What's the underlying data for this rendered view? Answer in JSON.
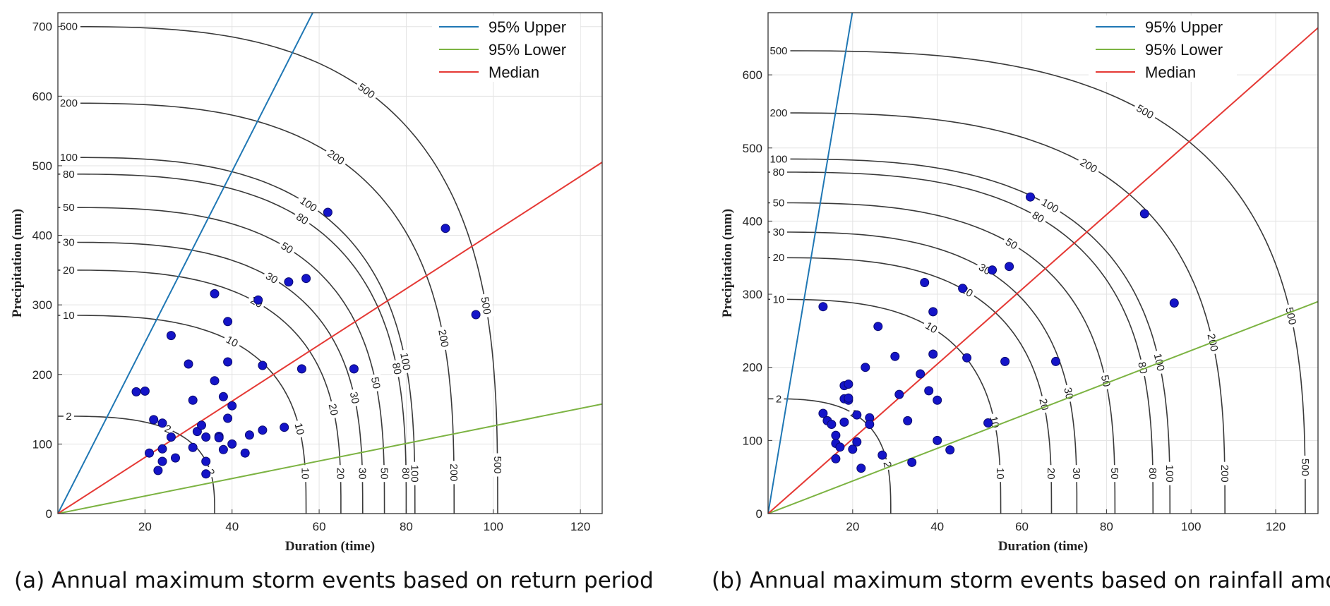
{
  "chart_data": [
    {
      "type": "scatter",
      "caption": "(a) Annual maximum storm events based on return period",
      "xlabel": "Duration (time)",
      "ylabel": "Precipitation (mm)",
      "xlim": [
        0,
        125
      ],
      "ylim": [
        0,
        720
      ],
      "xticks": [
        20,
        40,
        60,
        80,
        100,
        120
      ],
      "yticks": [
        0,
        100,
        200,
        300,
        400,
        500,
        600,
        700
      ],
      "grid": true,
      "legend_position": "top-right",
      "lines": [
        {
          "name": "95% Upper",
          "color": "#1f77b4",
          "slope": 12.3
        },
        {
          "name": "95% Lower",
          "color": "#7cb342",
          "slope": 1.26
        },
        {
          "name": "Median",
          "color": "#e53935",
          "slope": 4.04
        }
      ],
      "contours": [
        {
          "label": "2",
          "p_max": 140,
          "d_max": 36,
          "n": 3
        },
        {
          "label": "10",
          "p_max": 285,
          "d_max": 57,
          "n": 3
        },
        {
          "label": "20",
          "p_max": 350,
          "d_max": 65,
          "n": 3
        },
        {
          "label": "30",
          "p_max": 390,
          "d_max": 70,
          "n": 3
        },
        {
          "label": "50",
          "p_max": 440,
          "d_max": 75,
          "n": 3
        },
        {
          "label": "80",
          "p_max": 488,
          "d_max": 80,
          "n": 3
        },
        {
          "label": "100",
          "p_max": 512,
          "d_max": 82,
          "n": 3
        },
        {
          "label": "200",
          "p_max": 590,
          "d_max": 91,
          "n": 3
        },
        {
          "label": "500",
          "p_max": 700,
          "d_max": 101,
          "n": 3
        }
      ],
      "points": {
        "x": [
          18,
          20,
          22,
          24,
          24,
          21,
          23,
          24,
          26,
          27,
          26,
          30,
          31,
          31,
          32,
          33,
          34,
          34,
          34,
          36,
          36,
          37,
          37,
          38,
          38,
          39,
          39,
          39,
          40,
          40,
          43,
          44,
          46,
          47,
          47,
          52,
          53,
          56,
          57,
          62,
          68,
          89,
          96
        ],
        "y": [
          175,
          176,
          135,
          93,
          130,
          87,
          62,
          75,
          110,
          80,
          256,
          215,
          163,
          95,
          118,
          127,
          110,
          75,
          57,
          191,
          316,
          111,
          109,
          92,
          168,
          137,
          218,
          276,
          155,
          100,
          87,
          113,
          307,
          120,
          213,
          124,
          333,
          208,
          338,
          433,
          208,
          410,
          286
        ]
      }
    },
    {
      "type": "scatter",
      "caption": "(b) Annual maximum storm events based on rainfall amount",
      "xlabel": "Duration (time)",
      "ylabel": "Precipitation (mm)",
      "xlim": [
        0,
        130
      ],
      "ylim": [
        0,
        685
      ],
      "xticks": [
        20,
        40,
        60,
        80,
        100,
        120
      ],
      "yticks": [
        0,
        100,
        200,
        300,
        400,
        500,
        600
      ],
      "grid": true,
      "legend_position": "top-right",
      "lines": [
        {
          "name": "95% Upper",
          "color": "#1f77b4",
          "slope": 34.4
        },
        {
          "name": "95% Lower",
          "color": "#7cb342",
          "slope": 2.23
        },
        {
          "name": "Median",
          "color": "#e53935",
          "slope": 5.11
        }
      ],
      "contours": [
        {
          "label": "2",
          "p_max": 157,
          "d_max": 29,
          "n": 3
        },
        {
          "label": "10",
          "p_max": 293,
          "d_max": 55,
          "n": 3
        },
        {
          "label": "20",
          "p_max": 350,
          "d_max": 67,
          "n": 3
        },
        {
          "label": "30",
          "p_max": 385,
          "d_max": 73,
          "n": 3
        },
        {
          "label": "50",
          "p_max": 425,
          "d_max": 82,
          "n": 3
        },
        {
          "label": "80",
          "p_max": 467,
          "d_max": 91,
          "n": 3
        },
        {
          "label": "100",
          "p_max": 485,
          "d_max": 95,
          "n": 3
        },
        {
          "label": "200",
          "p_max": 548,
          "d_max": 108,
          "n": 3
        },
        {
          "label": "500",
          "p_max": 633,
          "d_max": 127,
          "n": 3
        }
      ],
      "points": {
        "x": [
          13,
          13,
          14,
          15,
          16,
          16,
          16,
          17,
          18,
          18,
          18,
          19,
          19,
          19,
          20,
          21,
          21,
          22,
          23,
          24,
          24,
          26,
          27,
          30,
          31,
          33,
          34,
          36,
          37,
          38,
          39,
          39,
          40,
          40,
          43,
          46,
          47,
          52,
          53,
          56,
          57,
          62,
          68,
          89,
          96
        ],
        "y": [
          283,
          137,
          127,
          122,
          75,
          107,
          96,
          91,
          175,
          157,
          125,
          155,
          158,
          177,
          88,
          98,
          135,
          62,
          200,
          131,
          122,
          256,
          80,
          215,
          163,
          127,
          70,
          191,
          316,
          168,
          218,
          276,
          155,
          100,
          87,
          308,
          213,
          124,
          333,
          208,
          338,
          433,
          208,
          410,
          288
        ]
      }
    }
  ]
}
